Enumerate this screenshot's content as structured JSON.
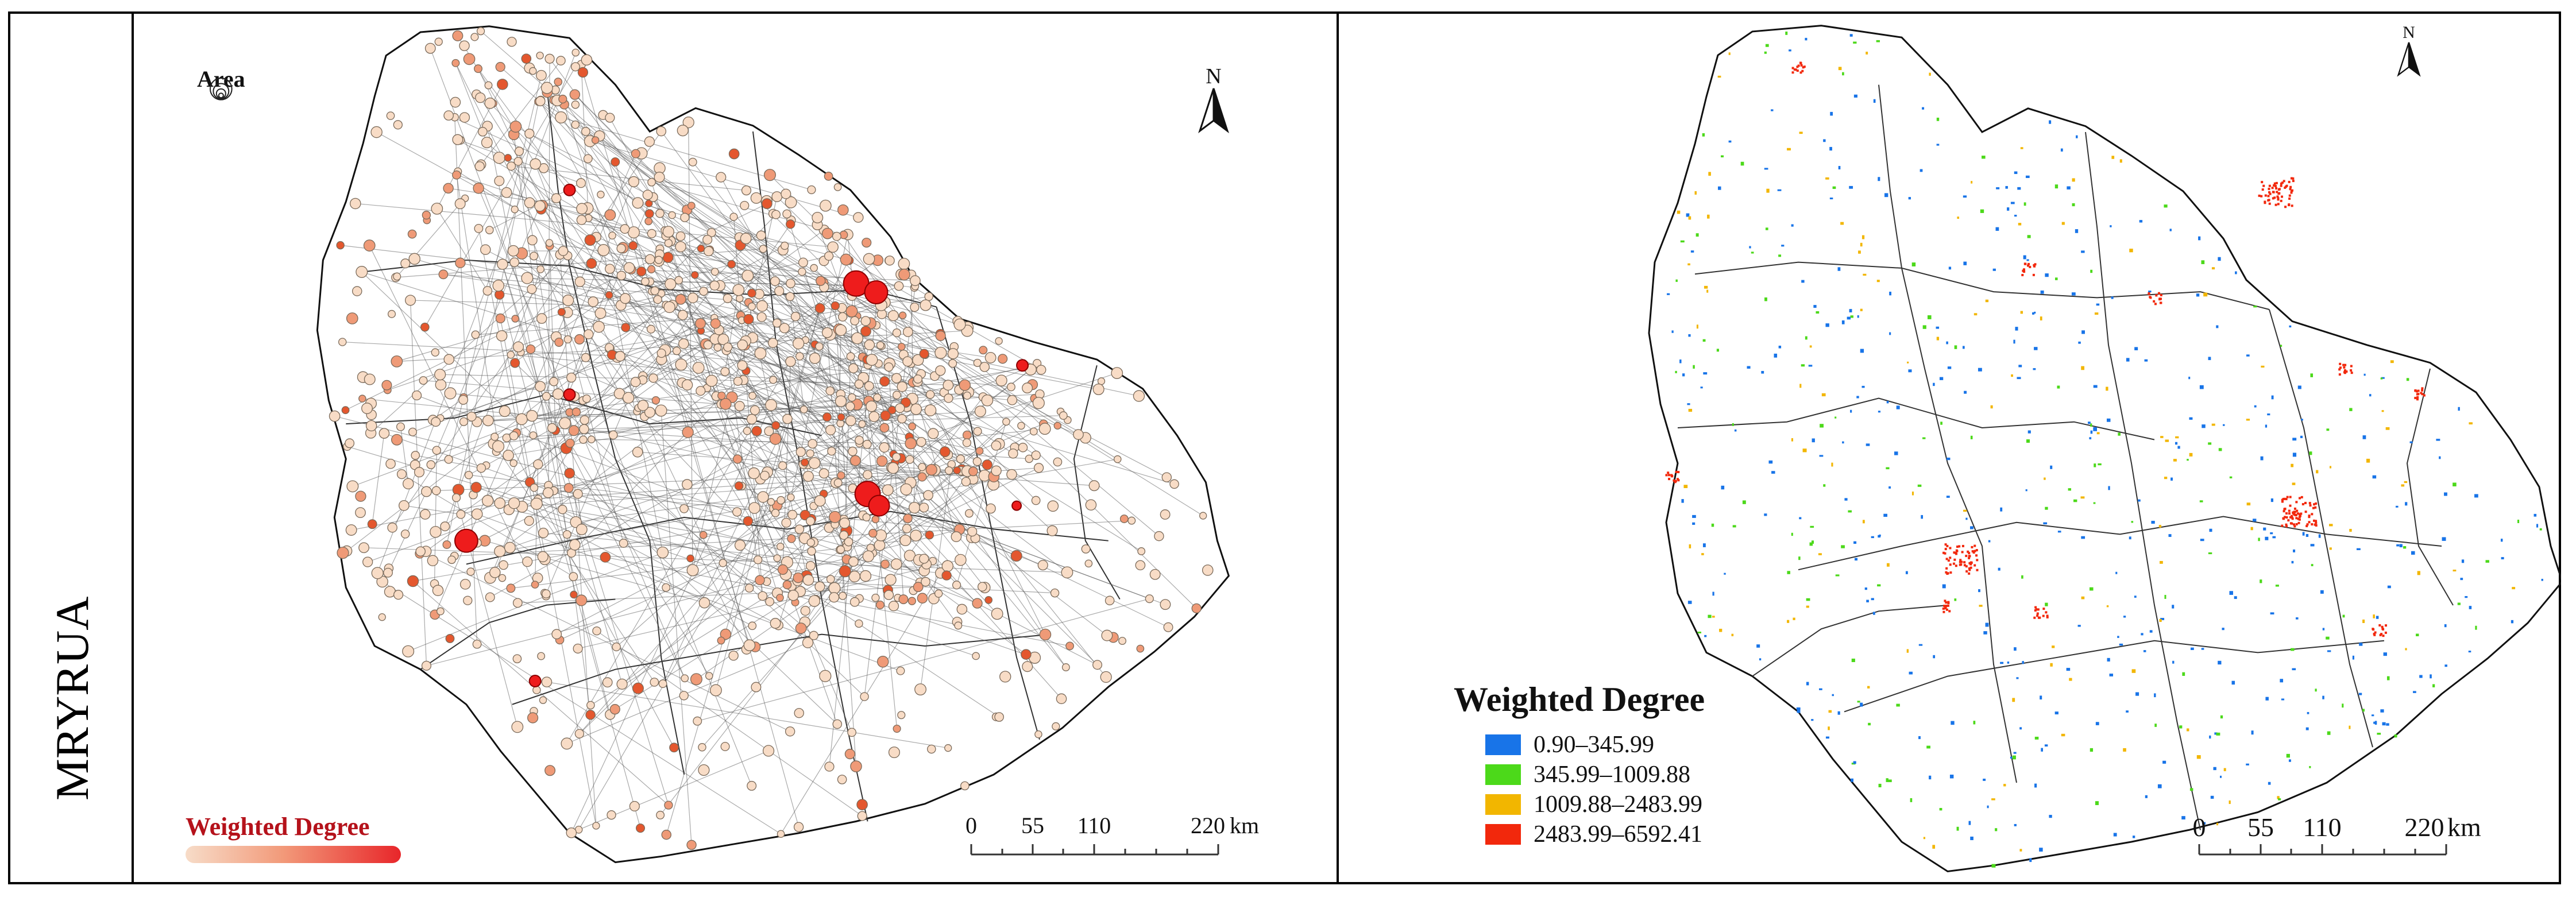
{
  "row_label": "MRYRUA",
  "left_panel": {
    "area_legend_title": "Area",
    "north_label": "N",
    "legend_title": "Weighted Degree",
    "legend_colors": [
      "#f7dcc8",
      "#e8262a"
    ],
    "scale_labels": [
      "0",
      "55",
      "110",
      "220"
    ],
    "scale_unit": "km"
  },
  "right_panel": {
    "north_label": "N",
    "legend_title": "Weighted Degree",
    "classes": [
      {
        "label": "0.90–345.99",
        "color": "#1874e8"
      },
      {
        "label": "345.99–1009.88",
        "color": "#4cd91a"
      },
      {
        "label": "1009.88–2483.99",
        "color": "#f2b600"
      },
      {
        "label": "2483.99–6592.41",
        "color": "#f2280c"
      }
    ],
    "scale_labels": [
      "0",
      "55",
      "110",
      "220"
    ],
    "scale_unit": "km"
  }
}
